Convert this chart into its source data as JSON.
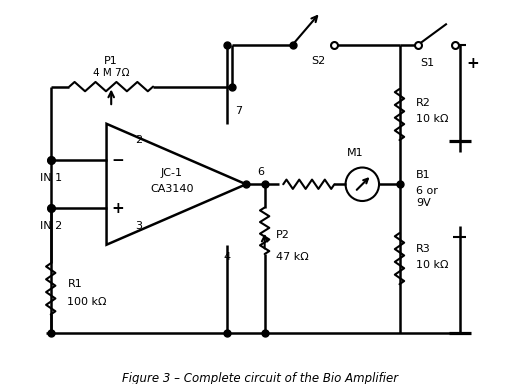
{
  "title": "Figure 3 – Complete circuit of the Bio Amplifier",
  "background": "#ffffff",
  "line_color": "#000000",
  "components": {
    "P1_label": "P1",
    "P1_val": "4 M 7Ω",
    "P2_label": "P2",
    "P2_val": "47 kΩ",
    "R1_label": "R1",
    "R1_val": "100 kΩ",
    "R2_label": "R2",
    "R2_val": "10 kΩ",
    "R3_label": "R3",
    "R3_val": "10 kΩ",
    "M1_label": "M1",
    "S1_label": "S1",
    "S2_label": "S2",
    "B1_label": "B1",
    "B1_val1": "6 or",
    "B1_val2": "9V",
    "pin2": "2",
    "pin3": "3",
    "pin4": "4",
    "pin6": "6",
    "pin7": "7",
    "opamp_name1": "JC-1",
    "opamp_name2": "CA3140",
    "IN1_label": "IN 1",
    "IN2_label": "IN 2"
  }
}
